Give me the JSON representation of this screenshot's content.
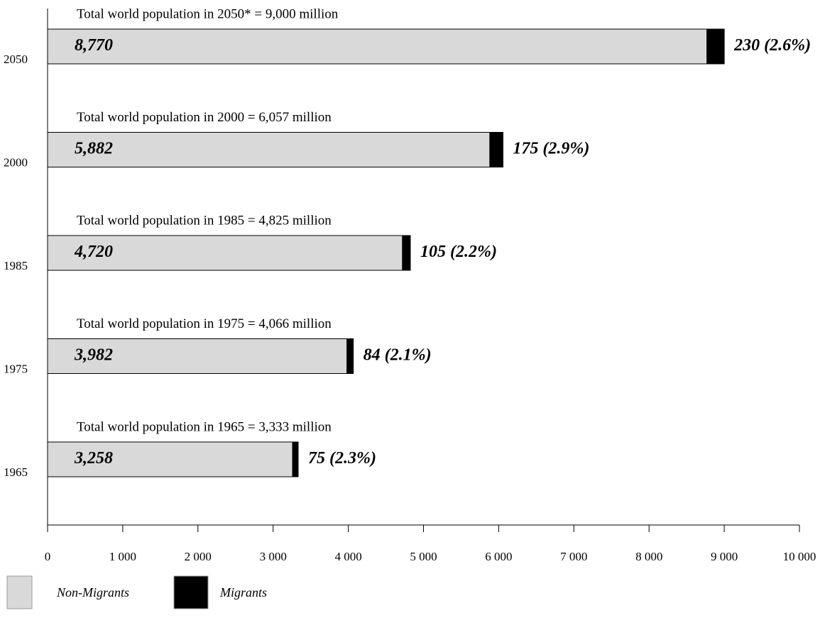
{
  "chart_data": {
    "type": "bar",
    "orientation": "horizontal",
    "stacked": true,
    "categories": [
      "2050",
      "2000",
      "1985",
      "1975",
      "1965"
    ],
    "annotations": [
      "Total world population in 2050* = 9,000 million",
      "Total world population in 2000 = 6,057 million",
      "Total world population in 1985 = 4,825 million",
      "Total world population in 1975 = 4,066 million",
      "Total world population in 1965 = 3,333 million"
    ],
    "series": [
      {
        "name": "Non-Migrants",
        "color": "#d9d9d9",
        "values": [
          8770,
          5882,
          4720,
          3982,
          3258
        ],
        "value_labels": [
          "8,770",
          "5,882",
          "4,720",
          "3,982",
          "3,258"
        ]
      },
      {
        "name": "Migrants",
        "color": "#000000",
        "values": [
          230,
          175,
          105,
          84,
          75
        ],
        "value_labels": [
          "230 (2.6%)",
          "175 (2.9%)",
          "105 (2.2%)",
          "84 (2.1%)",
          "75 (2.3%)"
        ]
      }
    ],
    "xlim": [
      0,
      10000
    ],
    "xticks": [
      0,
      {
        "value": 1000,
        "label": "1 000"
      },
      {
        "value": 2000,
        "label": "2 000"
      },
      {
        "value": 3000,
        "label": "3 000"
      },
      {
        "value": 4000,
        "label": "4 000"
      },
      {
        "value": 5000,
        "label": "5 000"
      },
      {
        "value": 6000,
        "label": "6 000"
      },
      {
        "value": 7000,
        "label": "7 000"
      },
      {
        "value": 8000,
        "label": "8 000"
      },
      {
        "value": 9000,
        "label": "9 000"
      },
      {
        "value": 10000,
        "label": "10 000"
      }
    ],
    "legend": "bottom-left"
  }
}
